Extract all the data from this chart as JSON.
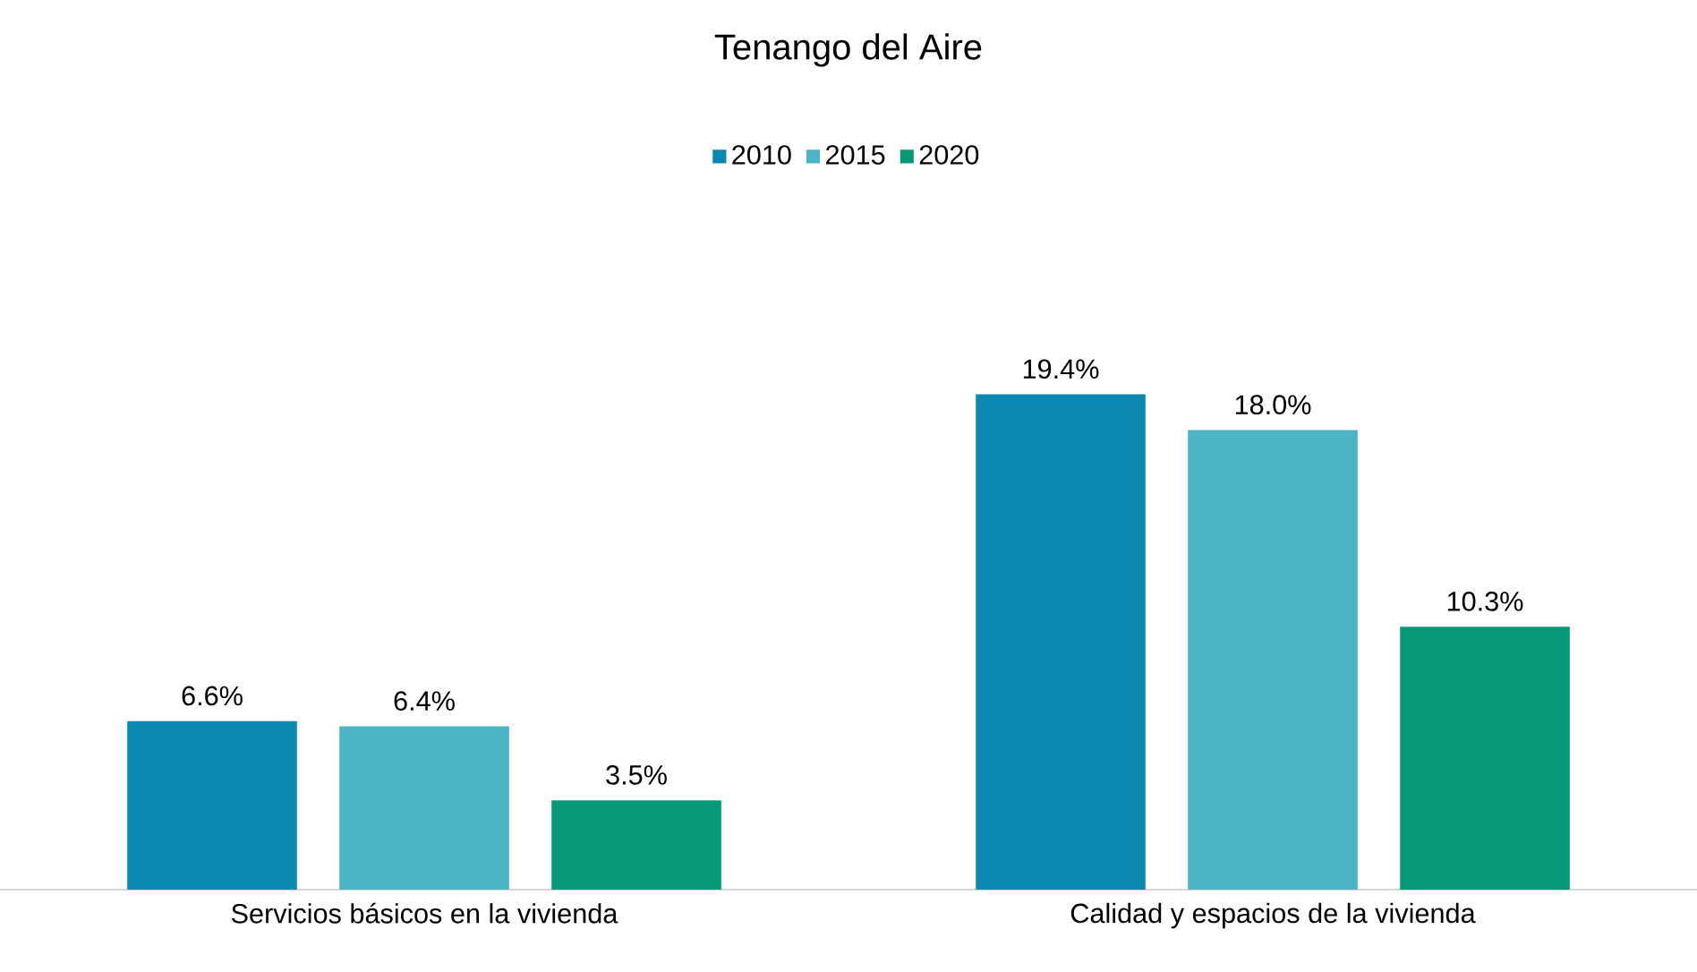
{
  "chart_data": {
    "type": "bar",
    "title": "Tenango del Aire",
    "categories": [
      "Servicios básicos en la vivienda",
      "Calidad y espacios de la vivienda"
    ],
    "series": [
      {
        "name": "2010",
        "color": "#0b87b0",
        "values": [
          6.6,
          19.4
        ],
        "value_labels": [
          "6.6%",
          "19.4%"
        ]
      },
      {
        "name": "2015",
        "color": "#4cb4c4",
        "values": [
          6.4,
          18.0
        ],
        "value_labels": [
          "6.4%",
          "18.0%"
        ]
      },
      {
        "name": "2020",
        "color": "#079878",
        "values": [
          3.5,
          10.3
        ],
        "value_labels": [
          "3.5%",
          "10.3%"
        ]
      }
    ],
    "legend": "top"
  }
}
